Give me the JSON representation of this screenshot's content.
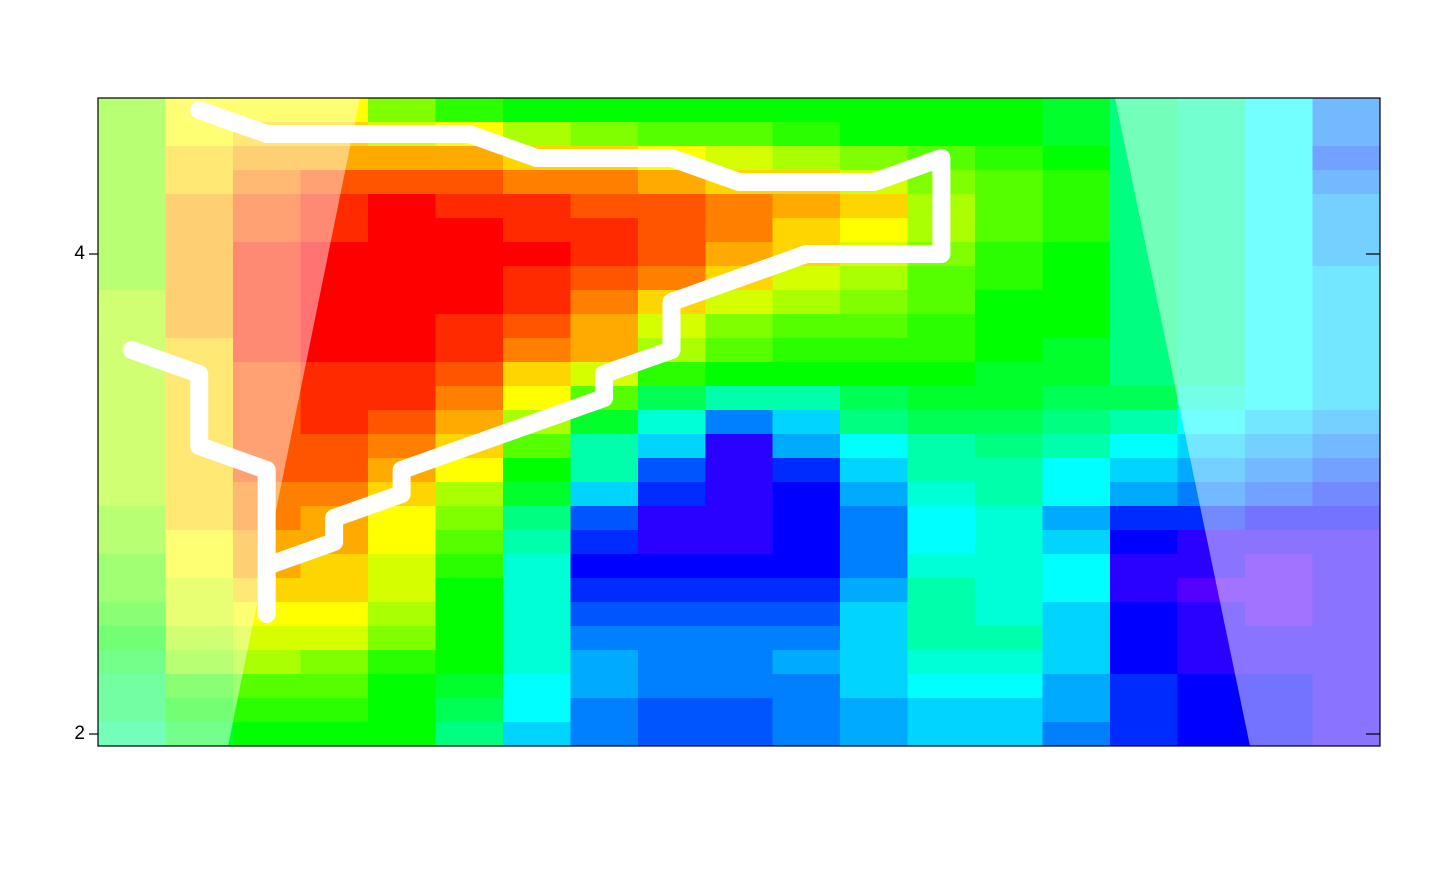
{
  "chart_data": {
    "type": "heatmap",
    "colormap": "rainbow",
    "zlim": [
      0,
      26
    ],
    "xlim": [
      0.5,
      19.5
    ],
    "ylim": [
      1.95,
      4.65
    ],
    "yticks": [
      2,
      4
    ],
    "x": [
      1,
      2,
      3,
      4,
      5,
      6,
      7,
      8,
      9,
      10,
      11,
      12,
      13,
      14,
      15,
      16,
      17,
      18,
      19
    ],
    "y": [
      4.6,
      4.5,
      4.4,
      4.3,
      4.2,
      4.1,
      4.0,
      3.9,
      3.8,
      3.7,
      3.6,
      3.5,
      3.4,
      3.3,
      3.2,
      3.1,
      3.0,
      2.9,
      2.8,
      2.7,
      2.6,
      2.5,
      2.4,
      2.3,
      2.2,
      2.1,
      2.0
    ],
    "z": [
      [
        9,
        6,
        6,
        6,
        9,
        11,
        12,
        12,
        12,
        12,
        12,
        12,
        12,
        12,
        13,
        15,
        16,
        18,
        21
      ],
      [
        9,
        6,
        5,
        5,
        7,
        6,
        8,
        9,
        10,
        10,
        11,
        12,
        12,
        12,
        13,
        15,
        16,
        18,
        21
      ],
      [
        9,
        5,
        4,
        4,
        4,
        4,
        5,
        5,
        6,
        7,
        8,
        9,
        10,
        11,
        12,
        15,
        16,
        18,
        22
      ],
      [
        9,
        5,
        3,
        2,
        2,
        2,
        3,
        3,
        4,
        5,
        5,
        7,
        9,
        10,
        11,
        15,
        16,
        18,
        21
      ],
      [
        9,
        4,
        2,
        1,
        0,
        1,
        1,
        2,
        2,
        3,
        4,
        5,
        8,
        10,
        11,
        15,
        16,
        18,
        20
      ],
      [
        9,
        4,
        2,
        1,
        0,
        0,
        1,
        1,
        2,
        3,
        5,
        6,
        8,
        10,
        11,
        15,
        16,
        18,
        20
      ],
      [
        9,
        4,
        1,
        0,
        0,
        0,
        0,
        1,
        2,
        4,
        5,
        7,
        9,
        11,
        12,
        15,
        16,
        18,
        20
      ],
      [
        9,
        4,
        1,
        0,
        0,
        0,
        1,
        2,
        3,
        5,
        7,
        8,
        10,
        11,
        12,
        15,
        16,
        18,
        19
      ],
      [
        8,
        4,
        1,
        0,
        0,
        0,
        1,
        3,
        5,
        7,
        8,
        9,
        10,
        12,
        12,
        15,
        16,
        18,
        19
      ],
      [
        8,
        4,
        1,
        0,
        0,
        1,
        2,
        4,
        7,
        9,
        10,
        10,
        11,
        12,
        12,
        15,
        16,
        18,
        19
      ],
      [
        8,
        5,
        1,
        0,
        0,
        1,
        3,
        4,
        8,
        10,
        11,
        11,
        11,
        12,
        13,
        15,
        16,
        18,
        19
      ],
      [
        8,
        5,
        2,
        1,
        1,
        2,
        5,
        7,
        11,
        12,
        12,
        12,
        12,
        13,
        13,
        15,
        16,
        18,
        19
      ],
      [
        8,
        5,
        2,
        1,
        1,
        3,
        6,
        10,
        14,
        16,
        16,
        14,
        13,
        13,
        14,
        14,
        17,
        18,
        19
      ],
      [
        8,
        5,
        2,
        1,
        2,
        4,
        8,
        13,
        17,
        21,
        19,
        15,
        14,
        14,
        15,
        16,
        18,
        19,
        20
      ],
      [
        8,
        5,
        2,
        2,
        3,
        5,
        10,
        16,
        19,
        25,
        20,
        18,
        16,
        15,
        16,
        18,
        19,
        20,
        21
      ],
      [
        8,
        5,
        2,
        2,
        4,
        6,
        12,
        16,
        22,
        25,
        23,
        19,
        16,
        16,
        18,
        19,
        20,
        21,
        22
      ],
      [
        8,
        5,
        3,
        3,
        5,
        8,
        13,
        19,
        23,
        25,
        24,
        20,
        17,
        16,
        18,
        20,
        21,
        22,
        23
      ],
      [
        9,
        5,
        3,
        4,
        6,
        9,
        15,
        22,
        25,
        25,
        24,
        21,
        18,
        17,
        20,
        23,
        23,
        24,
        24
      ],
      [
        9,
        6,
        4,
        4,
        6,
        10,
        16,
        23,
        25,
        25,
        24,
        21,
        18,
        17,
        19,
        24,
        25,
        25,
        25
      ],
      [
        10,
        6,
        4,
        5,
        7,
        11,
        17,
        24,
        24,
        24,
        24,
        21,
        17,
        17,
        18,
        25,
        25,
        26,
        25
      ],
      [
        10,
        7,
        5,
        5,
        7,
        12,
        17,
        23,
        23,
        23,
        23,
        20,
        16,
        17,
        18,
        25,
        26,
        26,
        25
      ],
      [
        11,
        7,
        6,
        6,
        8,
        12,
        17,
        22,
        22,
        22,
        22,
        19,
        16,
        17,
        19,
        24,
        25,
        26,
        25
      ],
      [
        12,
        8,
        7,
        7,
        9,
        12,
        17,
        21,
        21,
        21,
        21,
        19,
        16,
        16,
        19,
        24,
        25,
        25,
        25
      ],
      [
        13,
        9,
        8,
        9,
        11,
        12,
        17,
        20,
        21,
        21,
        20,
        19,
        17,
        17,
        19,
        24,
        25,
        25,
        25
      ],
      [
        14,
        11,
        10,
        10,
        12,
        13,
        18,
        20,
        21,
        21,
        21,
        19,
        18,
        18,
        20,
        23,
        24,
        24,
        25
      ],
      [
        14,
        12,
        11,
        11,
        12,
        14,
        18,
        21,
        22,
        22,
        21,
        20,
        19,
        19,
        20,
        23,
        24,
        24,
        25
      ],
      [
        15,
        13,
        12,
        12,
        12,
        15,
        19,
        21,
        22,
        22,
        21,
        20,
        19,
        19,
        21,
        23,
        24,
        24,
        25
      ]
    ],
    "series": [
      {
        "color": "#ffffff",
        "x": [
          2,
          3,
          6,
          7,
          9,
          10,
          12,
          13,
          13,
          11,
          10,
          9,
          9,
          8,
          8,
          5,
          5,
          4,
          4,
          3,
          3,
          null,
          1,
          2,
          2,
          3,
          3
        ],
        "values": [
          4.6,
          4.5,
          4.5,
          4.4,
          4.4,
          4.3,
          4.3,
          4.4,
          4.0,
          4.0,
          3.9,
          3.8,
          3.6,
          3.5,
          3.4,
          3.1,
          3.0,
          2.9,
          2.8,
          2.7,
          2.5,
          null,
          3.6,
          3.5,
          3.2,
          3.1,
          2.5
        ]
      }
    ]
  }
}
